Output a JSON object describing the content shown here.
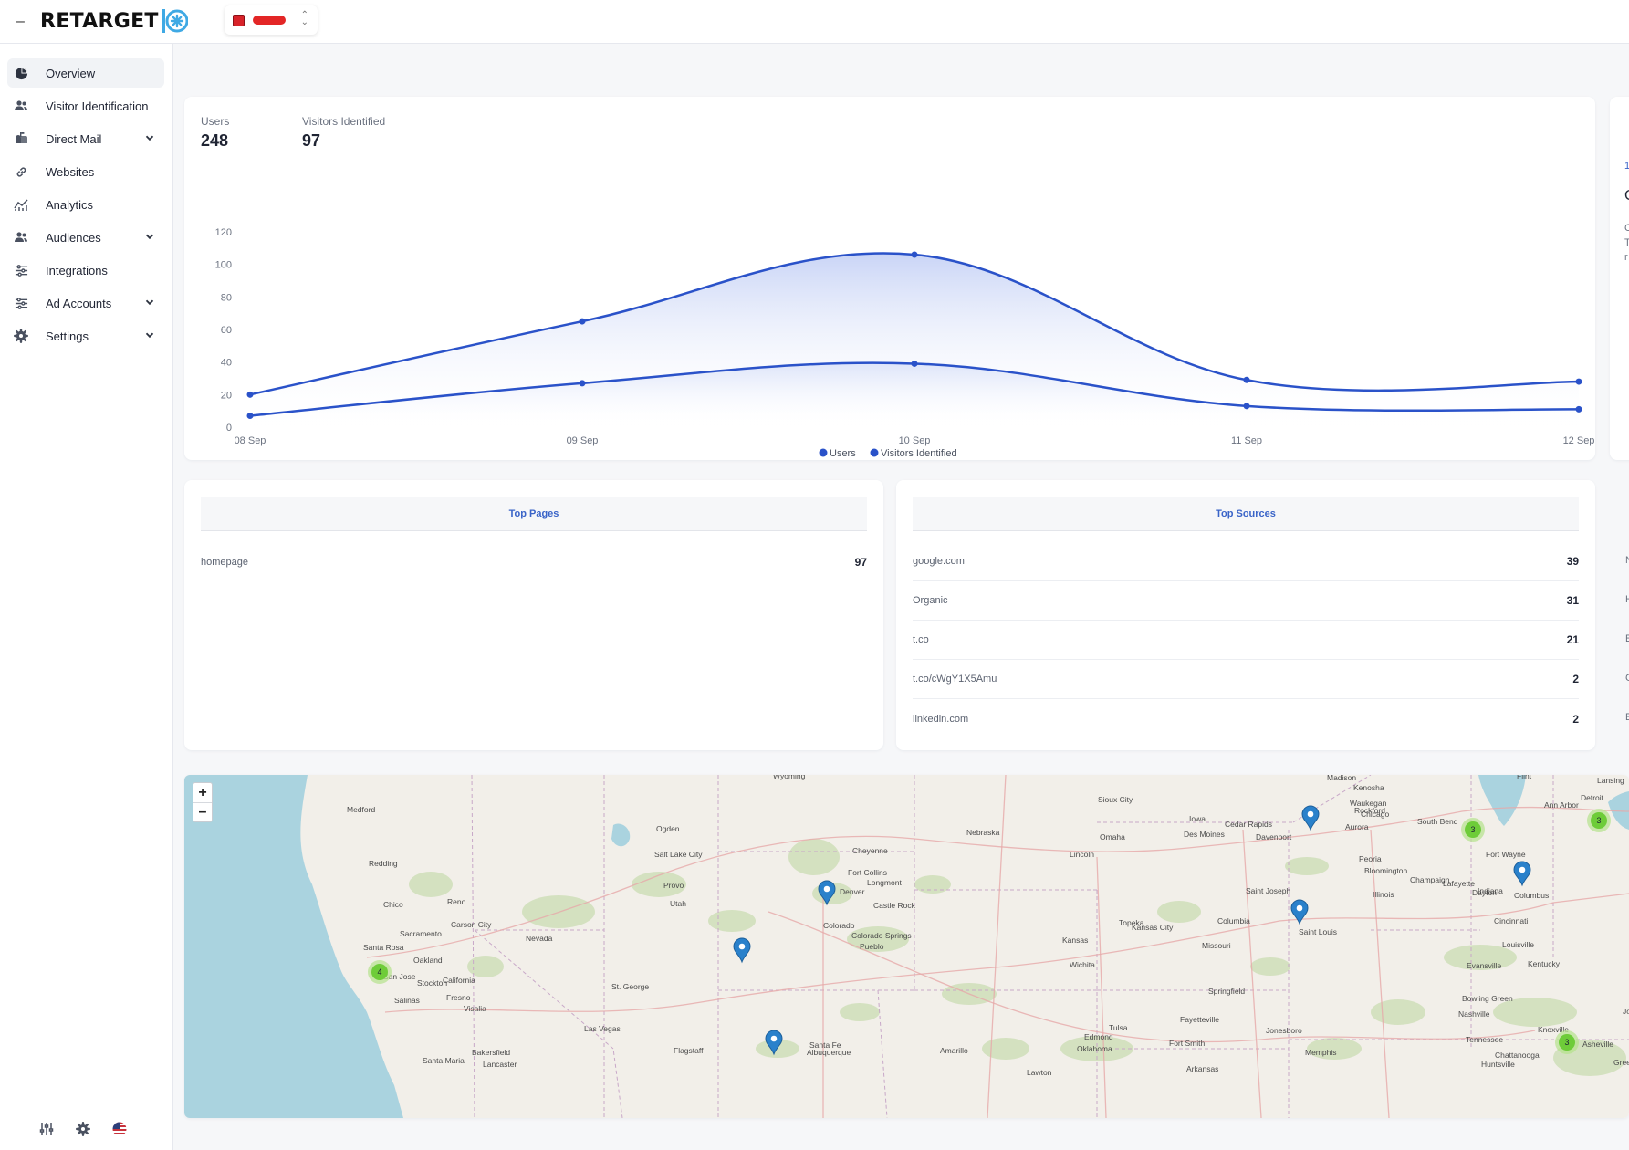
{
  "app": {
    "brand": "RETARGET",
    "collapse_glyph": "–"
  },
  "sidebar": {
    "items": [
      {
        "label": "Overview",
        "icon": "pie-chart-icon",
        "active": true,
        "expandable": false
      },
      {
        "label": "Visitor Identification",
        "icon": "users-icon",
        "active": false,
        "expandable": false
      },
      {
        "label": "Direct Mail",
        "icon": "mailbox-icon",
        "active": false,
        "expandable": true
      },
      {
        "label": "Websites",
        "icon": "link-icon",
        "active": false,
        "expandable": false
      },
      {
        "label": "Analytics",
        "icon": "analytics-icon",
        "active": false,
        "expandable": false
      },
      {
        "label": "Audiences",
        "icon": "audience-icon",
        "active": false,
        "expandable": true
      },
      {
        "label": "Integrations",
        "icon": "sliders-icon",
        "active": false,
        "expandable": false
      },
      {
        "label": "Ad Accounts",
        "icon": "sliders-icon",
        "active": false,
        "expandable": true
      },
      {
        "label": "Settings",
        "icon": "gear-icon",
        "active": false,
        "expandable": true
      }
    ],
    "footer_icons": [
      "equalizer-icon",
      "gear-icon",
      "us-flag-icon"
    ]
  },
  "stats": {
    "users_label": "Users",
    "users_value": "248",
    "visitors_label": "Visitors Identified",
    "visitors_value": "97"
  },
  "chart_data": {
    "type": "area",
    "categories": [
      "08 Sep",
      "09 Sep",
      "10 Sep",
      "11 Sep",
      "12 Sep"
    ],
    "series": [
      {
        "name": "Users",
        "values": [
          20,
          65,
          106,
          29,
          28
        ]
      },
      {
        "name": "Visitors Identified",
        "values": [
          7,
          27,
          39,
          13,
          11
        ]
      }
    ],
    "ylim": [
      0,
      120
    ],
    "yticks": [
      0,
      20,
      40,
      60,
      80,
      100,
      120
    ],
    "legend_position": "bottom-center",
    "grid": false,
    "colors": {
      "line": "#2a52c9",
      "fill_top": "#b7c6f3"
    }
  },
  "top_pages": {
    "title": "Top Pages",
    "rows": [
      {
        "name": "homepage",
        "count": "97"
      }
    ]
  },
  "top_sources": {
    "title": "Top Sources",
    "rows": [
      {
        "name": "google.com",
        "count": "39"
      },
      {
        "name": "Organic",
        "count": "31"
      },
      {
        "name": "t.co",
        "count": "21"
      },
      {
        "name": "t.co/cWgY1X5Amu",
        "count": "2"
      },
      {
        "name": "linkedin.com",
        "count": "2"
      }
    ]
  },
  "right_peek": {
    "letters": [
      "1",
      "C",
      "C",
      "T",
      "r"
    ],
    "row_letters": [
      "N",
      "H",
      "E",
      "C",
      "E"
    ]
  },
  "map": {
    "zoom_in": "+",
    "zoom_out": "–",
    "cities": [
      "Medford",
      "Redding",
      "Chico",
      "Reno",
      "Carson City",
      "Sacramento",
      "Santa Rosa",
      "Oakland",
      "Stockton",
      "San Jose",
      "California",
      "Salinas",
      "Fresno",
      "Visalia",
      "Bakersfield",
      "Santa Maria",
      "Lancaster",
      "Las Vegas",
      "St. George",
      "Nevada",
      "Salt Lake City",
      "Ogden",
      "Provo",
      "Utah",
      "Flagstaff",
      "Wyoming",
      "Cheyenne",
      "Fort Collins",
      "Longmont",
      "Denver",
      "Castle Rock",
      "Colorado",
      "Colorado Springs",
      "Pueblo",
      "Santa Fe",
      "Albuquerque",
      "Amarillo",
      "Lawton",
      "Nebraska",
      "Omaha",
      "Lincoln",
      "Sioux City",
      "Des Moines",
      "Iowa",
      "Cedar Rapids",
      "Davenport",
      "Saint Joseph",
      "Topeka",
      "Kansas City",
      "Kansas",
      "Wichita",
      "Columbia",
      "Missouri",
      "Springfield",
      "Fayetteville",
      "Fort Smith",
      "Tulsa",
      "Edmond",
      "Oklahoma",
      "Memphis",
      "Jonesboro",
      "Arkansas",
      "Madison",
      "Rockford",
      "Kenosha",
      "Waukegan",
      "Chicago",
      "Aurora",
      "South Bend",
      "Peoria",
      "Bloomington",
      "Champaign",
      "Illinois",
      "Lafayette",
      "Indiana",
      "Fort Wayne",
      "Lansing",
      "Flint",
      "Ann Arbor",
      "Detroit",
      "Dayton",
      "Columbus",
      "Cincinnati",
      "Louisville",
      "Evansville",
      "Kentucky",
      "Saint Louis",
      "Bowling Green",
      "Nashville",
      "Tennessee",
      "Chattanooga",
      "Knoxville",
      "Huntsville",
      "Asheville",
      "Greenville",
      "Johnson City"
    ],
    "clusters": [
      {
        "count": "4",
        "place": "Oakland"
      },
      {
        "count": "3",
        "place": "Chicago"
      },
      {
        "count": "3",
        "place": "Detroit"
      },
      {
        "count": "3",
        "place": "Knoxville"
      }
    ],
    "pins": [
      "Des Moines",
      "Denver",
      "Grand Junction area",
      "Albuquerque",
      "Kansas City",
      "Lafayette"
    ]
  }
}
